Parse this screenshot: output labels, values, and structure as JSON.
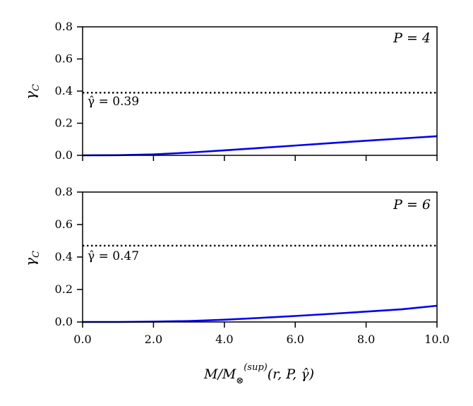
{
  "chart_data": [
    {
      "type": "line",
      "panel_label": "P = 4",
      "ylabel": "γ_C",
      "xlim": [
        0,
        10
      ],
      "ylim": [
        0,
        0.8
      ],
      "yticks": [
        "0.0",
        "0.2",
        "0.4",
        "0.6",
        "0.8"
      ],
      "xticks_labeled": false,
      "series": [
        {
          "color": "#0000ee",
          "style": "solid",
          "x": [
            0,
            1,
            2,
            3,
            4,
            5,
            6,
            7,
            8,
            9,
            10
          ],
          "y": [
            0.0,
            0.001,
            0.006,
            0.017,
            0.031,
            0.046,
            0.061,
            0.076,
            0.091,
            0.105,
            0.119
          ]
        },
        {
          "color": "#000000",
          "style": "dotted",
          "x": [
            0,
            10
          ],
          "y": [
            0.39,
            0.39
          ]
        }
      ],
      "annotation": "γ̂ = 0.39"
    },
    {
      "type": "line",
      "panel_label": "P = 6",
      "ylabel": "γ_C",
      "xlabel": "M/M⊗^(sup)(r, P, γ̂)",
      "xlim": [
        0,
        10
      ],
      "ylim": [
        0,
        0.8
      ],
      "xticks": [
        "0.0",
        "2.0",
        "4.0",
        "6.0",
        "8.0",
        "10.0"
      ],
      "yticks": [
        "0.0",
        "0.2",
        "0.4",
        "0.6",
        "0.8"
      ],
      "series": [
        {
          "color": "#0000ee",
          "style": "solid",
          "x": [
            0,
            1,
            2,
            3,
            4,
            5,
            6,
            7,
            8,
            9,
            10
          ],
          "y": [
            0.0,
            0.0,
            0.002,
            0.006,
            0.014,
            0.025,
            0.037,
            0.05,
            0.064,
            0.078,
            0.1
          ]
        },
        {
          "color": "#000000",
          "style": "dotted",
          "x": [
            0,
            10
          ],
          "y": [
            0.47,
            0.47
          ]
        }
      ],
      "annotation": "γ̂ = 0.47"
    }
  ]
}
